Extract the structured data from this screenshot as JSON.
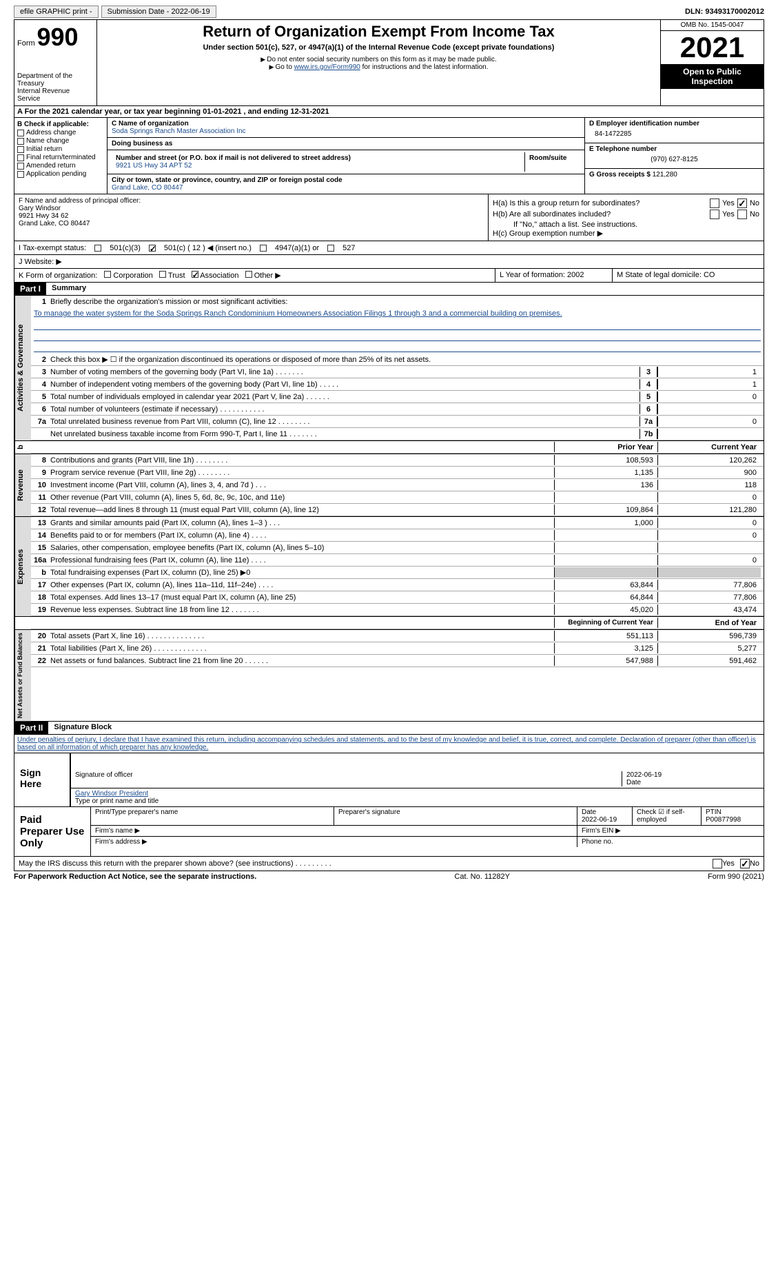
{
  "topbar": {
    "efile_label": "efile GRAPHIC print -",
    "submission_label": "Submission Date - 2022-06-19",
    "dln_label": "DLN: 93493170002012"
  },
  "header": {
    "form_prefix": "Form",
    "form_number": "990",
    "dept1": "Department of the Treasury",
    "dept2": "Internal Revenue Service",
    "title": "Return of Organization Exempt From Income Tax",
    "subtitle": "Under section 501(c), 527, or 4947(a)(1) of the Internal Revenue Code (except private foundations)",
    "note1": "Do not enter social security numbers on this form as it may be made public.",
    "note2_pre": "Go to ",
    "note2_link": "www.irs.gov/Form990",
    "note2_post": " for instructions and the latest information.",
    "omb": "OMB No. 1545-0047",
    "year": "2021",
    "inspect": "Open to Public Inspection"
  },
  "rowA": "A   For the 2021 calendar year, or tax year beginning 01-01-2021    , and ending 12-31-2021",
  "boxB": {
    "header": "B Check if applicable:",
    "items": [
      "Address change",
      "Name change",
      "Initial return",
      "Final return/terminated",
      "Amended return",
      "Application pending"
    ]
  },
  "boxC": {
    "name_lbl": "C Name of organization",
    "name_val": "Soda Springs Ranch Master Association Inc",
    "dba_lbl": "Doing business as",
    "addr_lbl": "Number and street (or P.O. box if mail is not delivered to street address)",
    "room_lbl": "Room/suite",
    "addr_val": "9921 US Hwy 34 APT 52",
    "city_lbl": "City or town, state or province, country, and ZIP or foreign postal code",
    "city_val": "Grand Lake, CO  80447"
  },
  "boxDE": {
    "d_lbl": "D Employer identification number",
    "d_val": "84-1472285",
    "e_lbl": "E Telephone number",
    "e_val": "(970) 627-8125",
    "g_lbl": "G Gross receipts $ ",
    "g_val": "121,280"
  },
  "boxF": {
    "lbl": "F Name and address of principal officer:",
    "name": "Gary Windsor",
    "addr1": "9921 Hwy 34 62",
    "addr2": "Grand Lake, CO  80447"
  },
  "boxH": {
    "a_lbl": "H(a)  Is this a group return for subordinates?",
    "b_lbl": "H(b)  Are all subordinates included?",
    "note": "If \"No,\" attach a list. See instructions.",
    "c_lbl": "H(c)  Group exemption number ▶",
    "yes": "Yes",
    "no": "No"
  },
  "rowI": {
    "lbl": "I   Tax-exempt status:",
    "opt1": "501(c)(3)",
    "opt2": "501(c) ( 12 ) ◀ (insert no.)",
    "opt3": "4947(a)(1) or",
    "opt4": "527"
  },
  "rowJ": "J   Website: ▶",
  "rowK": {
    "lbl": "K Form of organization:",
    "opts": [
      "Corporation",
      "Trust",
      "Association",
      "Other ▶"
    ],
    "l_lbl": "L Year of formation: ",
    "l_val": "2002",
    "m_lbl": "M State of legal domicile: ",
    "m_val": "CO"
  },
  "part1": {
    "label": "Part I",
    "title": "Summary"
  },
  "summary": {
    "line1_lbl": "Briefly describe the organization's mission or most significant activities:",
    "mission": "To manage the water system for the Soda Springs Ranch Condominium Homeowners Association Filings 1 through 3 and a commercial building on premises.",
    "line2": "Check this box ▶ ☐ if the organization discontinued its operations or disposed of more than 25% of its net assets.",
    "lines_a": [
      {
        "n": "3",
        "t": "Number of voting members of the governing body (Part VI, line 1a)   .    .    .    .    .    .    .",
        "box": "3",
        "v": "1"
      },
      {
        "n": "4",
        "t": "Number of independent voting members of the governing body (Part VI, line 1b)   .    .    .    .    .",
        "box": "4",
        "v": "1"
      },
      {
        "n": "5",
        "t": "Total number of individuals employed in calendar year 2021 (Part V, line 2a)   .    .    .    .    .    .",
        "box": "5",
        "v": "0"
      },
      {
        "n": "6",
        "t": "Total number of volunteers (estimate if necessary)    .    .    .    .    .    .    .    .    .    .    .",
        "box": "6",
        "v": ""
      },
      {
        "n": "7a",
        "t": "Total unrelated business revenue from Part VIII, column (C), line 12   .    .    .    .    .    .    .    .",
        "box": "7a",
        "v": "0"
      },
      {
        "n": "",
        "t": "Net unrelated business taxable income from Form 990-T, Part I, line 11   .    .    .    .    .    .    .",
        "box": "7b",
        "v": ""
      }
    ],
    "col_prior": "Prior Year",
    "col_current": "Current Year",
    "revenue": [
      {
        "n": "8",
        "t": "Contributions and grants (Part VIII, line 1h)    .    .    .    .    .    .    .    .",
        "p": "108,593",
        "c": "120,262"
      },
      {
        "n": "9",
        "t": "Program service revenue (Part VIII, line 2g)    .    .    .    .    .    .    .    .",
        "p": "1,135",
        "c": "900"
      },
      {
        "n": "10",
        "t": "Investment income (Part VIII, column (A), lines 3, 4, and 7d )    .    .    .",
        "p": "136",
        "c": "118"
      },
      {
        "n": "11",
        "t": "Other revenue (Part VIII, column (A), lines 5, 6d, 8c, 9c, 10c, and 11e)",
        "p": "",
        "c": "0"
      },
      {
        "n": "12",
        "t": "Total revenue—add lines 8 through 11 (must equal Part VIII, column (A), line 12)",
        "p": "109,864",
        "c": "121,280"
      }
    ],
    "expenses": [
      {
        "n": "13",
        "t": "Grants and similar amounts paid (Part IX, column (A), lines 1–3 )   .    .    .",
        "p": "1,000",
        "c": "0"
      },
      {
        "n": "14",
        "t": "Benefits paid to or for members (Part IX, column (A), line 4)   .    .    .    .",
        "p": "",
        "c": "0"
      },
      {
        "n": "15",
        "t": "Salaries, other compensation, employee benefits (Part IX, column (A), lines 5–10)",
        "p": "",
        "c": ""
      },
      {
        "n": "16a",
        "t": "Professional fundraising fees (Part IX, column (A), line 11e)   .    .    .    .",
        "p": "",
        "c": "0"
      },
      {
        "n": "b",
        "t": "Total fundraising expenses (Part IX, column (D), line 25) ▶0",
        "p": "",
        "c": "",
        "grey": true
      },
      {
        "n": "17",
        "t": "Other expenses (Part IX, column (A), lines 11a–11d, 11f–24e)   .    .    .    .",
        "p": "63,844",
        "c": "77,806"
      },
      {
        "n": "18",
        "t": "Total expenses. Add lines 13–17 (must equal Part IX, column (A), line 25)",
        "p": "64,844",
        "c": "77,806"
      },
      {
        "n": "19",
        "t": "Revenue less expenses. Subtract line 18 from line 12  .    .    .    .    .    .    .",
        "p": "45,020",
        "c": "43,474"
      }
    ],
    "col_begin": "Beginning of Current Year",
    "col_end": "End of Year",
    "netassets": [
      {
        "n": "20",
        "t": "Total assets (Part X, line 16)  .    .    .    .    .    .    .    .    .    .    .    .    .    .",
        "p": "551,113",
        "c": "596,739"
      },
      {
        "n": "21",
        "t": "Total liabilities (Part X, line 26)  .    .    .    .    .    .    .    .    .    .    .    .    .",
        "p": "3,125",
        "c": "5,277"
      },
      {
        "n": "22",
        "t": "Net assets or fund balances. Subtract line 21 from line 20  .    .    .    .    .    .",
        "p": "547,988",
        "c": "591,462"
      }
    ],
    "tab_activities": "Activities & Governance",
    "tab_revenue": "Revenue",
    "tab_expenses": "Expenses",
    "tab_netassets": "Net Assets or Fund Balances"
  },
  "part2": {
    "label": "Part II",
    "title": "Signature Block",
    "decl": "Under penalties of perjury, I declare that I have examined this return, including accompanying schedules and statements, and to the best of my knowledge and belief, it is true, correct, and complete. Declaration of preparer (other than officer) is based on all information of which preparer has any knowledge."
  },
  "sign": {
    "label": "Sign Here",
    "sig_lbl": "Signature of officer",
    "date": "2022-06-19",
    "date_lbl": "Date",
    "name": "Gary Windsor  President",
    "name_lbl": "Type or print name and title"
  },
  "paid": {
    "label": "Paid Preparer Use Only",
    "h1": "Print/Type preparer's name",
    "h2": "Preparer's signature",
    "h3": "Date",
    "h3v": "2022-06-19",
    "h4": "Check ☑ if self-employed",
    "h5": "PTIN",
    "h5v": "P00877998",
    "firm_name": "Firm's name    ▶",
    "firm_ein": "Firm's EIN ▶",
    "firm_addr": "Firm's address ▶",
    "phone": "Phone no."
  },
  "bottom": {
    "q": "May the IRS discuss this return with the preparer shown above? (see instructions)   .    .    .    .    .    .    .    .    .",
    "yes": "Yes",
    "no": "No"
  },
  "footer": {
    "left": "For Paperwork Reduction Act Notice, see the separate instructions.",
    "mid": "Cat. No. 11282Y",
    "right": "Form 990 (2021)"
  }
}
